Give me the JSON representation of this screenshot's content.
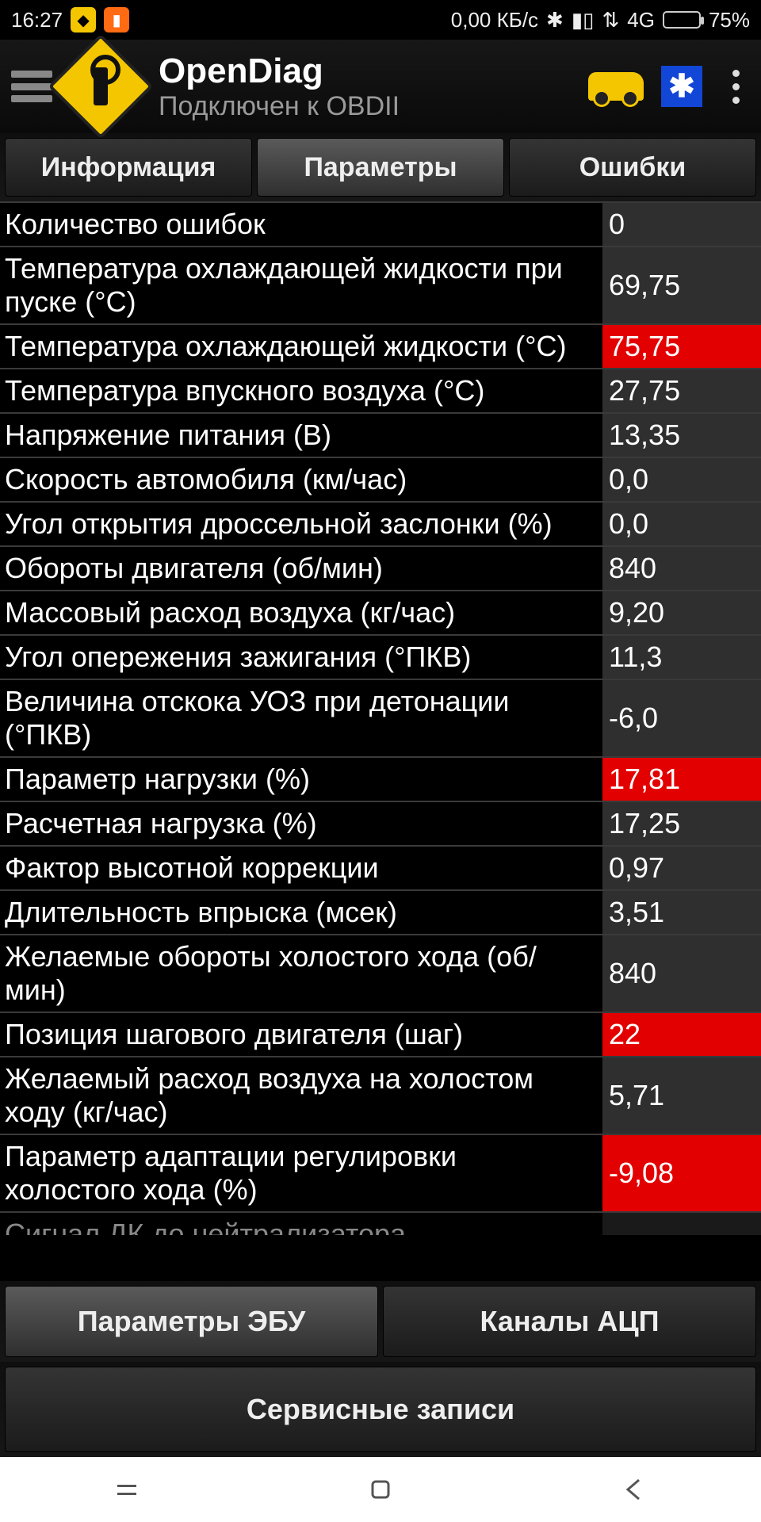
{
  "status": {
    "time": "16:27",
    "net_speed": "0,00 КБ/с",
    "net_type": "4G",
    "battery_pct": "75%",
    "battery_fill_pct": 75
  },
  "header": {
    "title": "OpenDiag",
    "subtitle": "Подключен к OBDII"
  },
  "tabs_top": {
    "info": "Информация",
    "params": "Параметры",
    "errors": "Ошибки",
    "active": 1
  },
  "rows": [
    {
      "label": "Количество ошибок",
      "value": "0",
      "alert": false
    },
    {
      "label": "Температура охлаждающей жидкости при пуске (°C)",
      "value": "69,75",
      "alert": false
    },
    {
      "label": "Температура охлаждающей жидкости (°C)",
      "value": "75,75",
      "alert": true
    },
    {
      "label": "Температура впускного воздуха (°C)",
      "value": "27,75",
      "alert": false
    },
    {
      "label": "Напряжение питания (В)",
      "value": "13,35",
      "alert": false
    },
    {
      "label": "Скорость автомобиля (км/час)",
      "value": "0,0",
      "alert": false
    },
    {
      "label": "Угол открытия дроссельной заслонки (%)",
      "value": "0,0",
      "alert": false
    },
    {
      "label": "Обороты двигателя (об/мин)",
      "value": "840",
      "alert": false
    },
    {
      "label": "Массовый расход воздуха (кг/час)",
      "value": "9,20",
      "alert": false
    },
    {
      "label": "Угол опережения зажигания (°ПКВ)",
      "value": "11,3",
      "alert": false
    },
    {
      "label": "Величина отскока УОЗ при детонации (°ПКВ)",
      "value": "-6,0",
      "alert": false
    },
    {
      "label": "Параметр нагрузки (%)",
      "value": "17,81",
      "alert": true
    },
    {
      "label": "Расчетная нагрузка (%)",
      "value": "17,25",
      "alert": false
    },
    {
      "label": "Фактор высотной коррекции",
      "value": "0,97",
      "alert": false
    },
    {
      "label": "Длительность впрыска (мсек)",
      "value": "3,51",
      "alert": false
    },
    {
      "label": "Желаемые обороты холостого хода (об/мин)",
      "value": "840",
      "alert": false
    },
    {
      "label": "Позиция шагового двигателя (шаг)",
      "value": "22",
      "alert": true
    },
    {
      "label": "Желаемый расход воздуха на холостом ходу (кг/час)",
      "value": "5,71",
      "alert": false
    },
    {
      "label": "Параметр адаптации регулировки холостого хода (%)",
      "value": "-9,08",
      "alert": true
    }
  ],
  "row_partial": {
    "label": "Сигнал ДК до нейтрализатора"
  },
  "tabs_mid": {
    "ecu": "Параметры ЭБУ",
    "adc": "Каналы АЦП",
    "active": 0
  },
  "button_service": "Сервисные записи",
  "colors": {
    "alert_bg": "#e30000",
    "value_bg": "#2f2f2f",
    "border": "#3a3a3a"
  }
}
